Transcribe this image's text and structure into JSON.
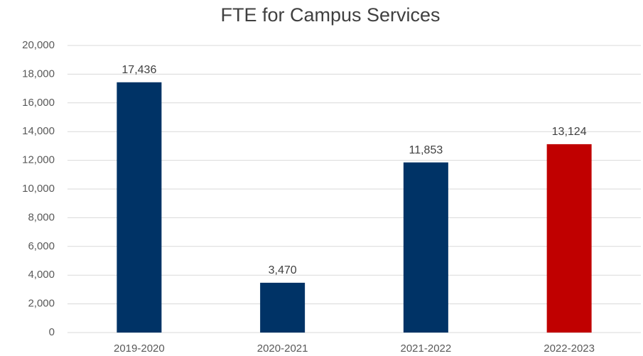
{
  "chart_data": {
    "type": "bar",
    "title": "FTE for Campus Services",
    "categories": [
      "2019-2020",
      "2020-2021",
      "2021-2022",
      "2022-2023"
    ],
    "values": [
      17436,
      3470,
      11853,
      13124
    ],
    "value_labels": [
      "17,436",
      "3,470",
      "11,853",
      "13,124"
    ],
    "colors": [
      "#003366",
      "#003366",
      "#003366",
      "#c00000"
    ],
    "ylim": [
      0,
      20000
    ],
    "yticks": [
      0,
      {
        "value": 2000,
        "label": "2,000"
      },
      {
        "value": 4000,
        "label": "4,000"
      },
      {
        "value": 6000,
        "label": "6,000"
      },
      {
        "value": 8000,
        "label": "8,000"
      },
      {
        "value": 10000,
        "label": "10,000"
      },
      {
        "value": 12000,
        "label": "12,000"
      },
      {
        "value": 14000,
        "label": "14,000"
      },
      {
        "value": 16000,
        "label": "16,000"
      },
      {
        "value": 18000,
        "label": "18,000"
      },
      {
        "value": 20000,
        "label": "20,000"
      }
    ],
    "grid": true
  }
}
